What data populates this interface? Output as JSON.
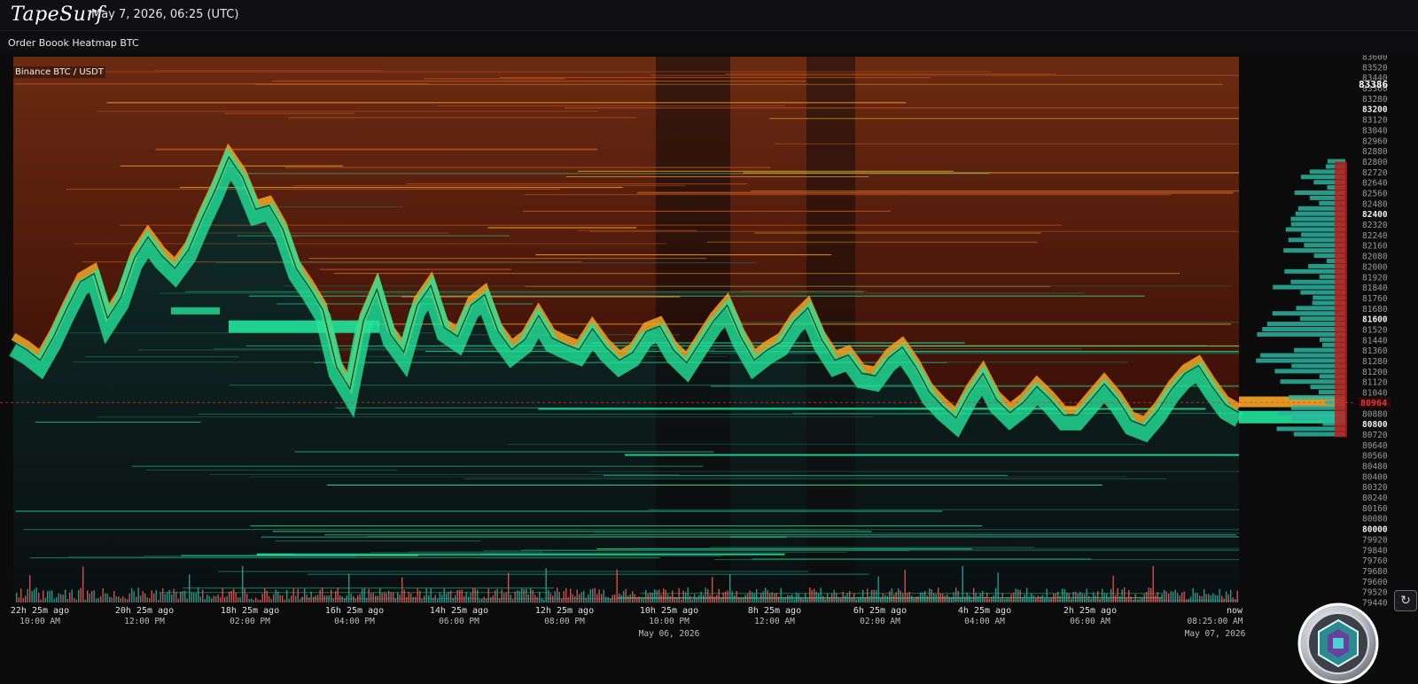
{
  "header": {
    "logo_text": "TapeSurf",
    "datetime": "May 7, 2026, 06:25 (UTC)"
  },
  "page": {
    "title": "Order Boook Heatmap BTC"
  },
  "chart_data": {
    "type": "heatmap",
    "symbol_label": "Binance BTC / USDT",
    "y_axis": {
      "ticks": [
        "83600",
        "83520",
        "83440",
        "83360",
        "83280",
        "83200",
        "83120",
        "83040",
        "82960",
        "82880",
        "82800",
        "82720",
        "82640",
        "82560",
        "82480",
        "82400",
        "82320",
        "82240",
        "82160",
        "82080",
        "82000",
        "81920",
        "81840",
        "81760",
        "81680",
        "81600",
        "81520",
        "81440",
        "81360",
        "81280",
        "81200",
        "81120",
        "81040",
        "80960",
        "80880",
        "80800",
        "80720",
        "80640",
        "80560",
        "80480",
        "80400",
        "80320",
        "80240",
        "80160",
        "80080",
        "80000",
        "79920",
        "79840",
        "79760",
        "79680",
        "79600",
        "79520",
        "79440"
      ],
      "bold_ticks": [
        "83200",
        "82400",
        "81600",
        "80800",
        "80000"
      ],
      "top_marker": "83386",
      "current_price_marker": "80964",
      "ylim": [
        79440,
        83600
      ]
    },
    "x_axis": {
      "ticks": [
        {
          "ago": "22h 25m ago",
          "time": "10:00 AM",
          "date": ""
        },
        {
          "ago": "20h 25m ago",
          "time": "12:00 PM",
          "date": ""
        },
        {
          "ago": "18h 25m ago",
          "time": "02:00 PM",
          "date": ""
        },
        {
          "ago": "16h 25m ago",
          "time": "04:00 PM",
          "date": ""
        },
        {
          "ago": "14h 25m ago",
          "time": "06:00 PM",
          "date": ""
        },
        {
          "ago": "12h 25m ago",
          "time": "08:00 PM",
          "date": ""
        },
        {
          "ago": "10h 25m ago",
          "time": "10:00 PM",
          "date": "May 06, 2026"
        },
        {
          "ago": "8h 25m ago",
          "time": "12:00 AM",
          "date": ""
        },
        {
          "ago": "6h 25m ago",
          "time": "02:00 AM",
          "date": ""
        },
        {
          "ago": "4h 25m ago",
          "time": "04:00 AM",
          "date": ""
        },
        {
          "ago": "2h 25m ago",
          "time": "06:00 AM",
          "date": ""
        },
        {
          "ago": "now",
          "time": "08:25:00 AM",
          "date": "May 07, 2026"
        }
      ]
    },
    "price_series": [
      81440,
      81380,
      81300,
      81480,
      81700,
      81900,
      81960,
      81620,
      81780,
      82080,
      82240,
      82100,
      82000,
      82140,
      82380,
      82600,
      82850,
      82700,
      82450,
      82480,
      82300,
      82000,
      81850,
      81680,
      81250,
      81080,
      81600,
      81840,
      81500,
      81360,
      81720,
      81870,
      81550,
      81480,
      81720,
      81800,
      81520,
      81380,
      81460,
      81640,
      81470,
      81420,
      81380,
      81540,
      81400,
      81300,
      81360,
      81520,
      81560,
      81380,
      81280,
      81440,
      81600,
      81720,
      81480,
      81300,
      81380,
      81440,
      81600,
      81700,
      81460,
      81300,
      81340,
      81200,
      81180,
      81320,
      81400,
      81250,
      81060,
      80950,
      80860,
      81050,
      81200,
      81000,
      80900,
      80980,
      81100,
      81000,
      80880,
      80880,
      81000,
      81120,
      81000,
      80840,
      80800,
      80920,
      81080,
      81200,
      81260,
      81100,
      80960,
      80900
    ],
    "colors": {
      "bid": "#22e39a",
      "ask_strong": "#f5a623",
      "ask_weak": "#8a2a12",
      "buy_volume": "#26a69a",
      "sell_volume": "#ef5350",
      "current_price": "#e53935"
    }
  },
  "controls": {
    "refresh_icon": "refresh-icon"
  }
}
